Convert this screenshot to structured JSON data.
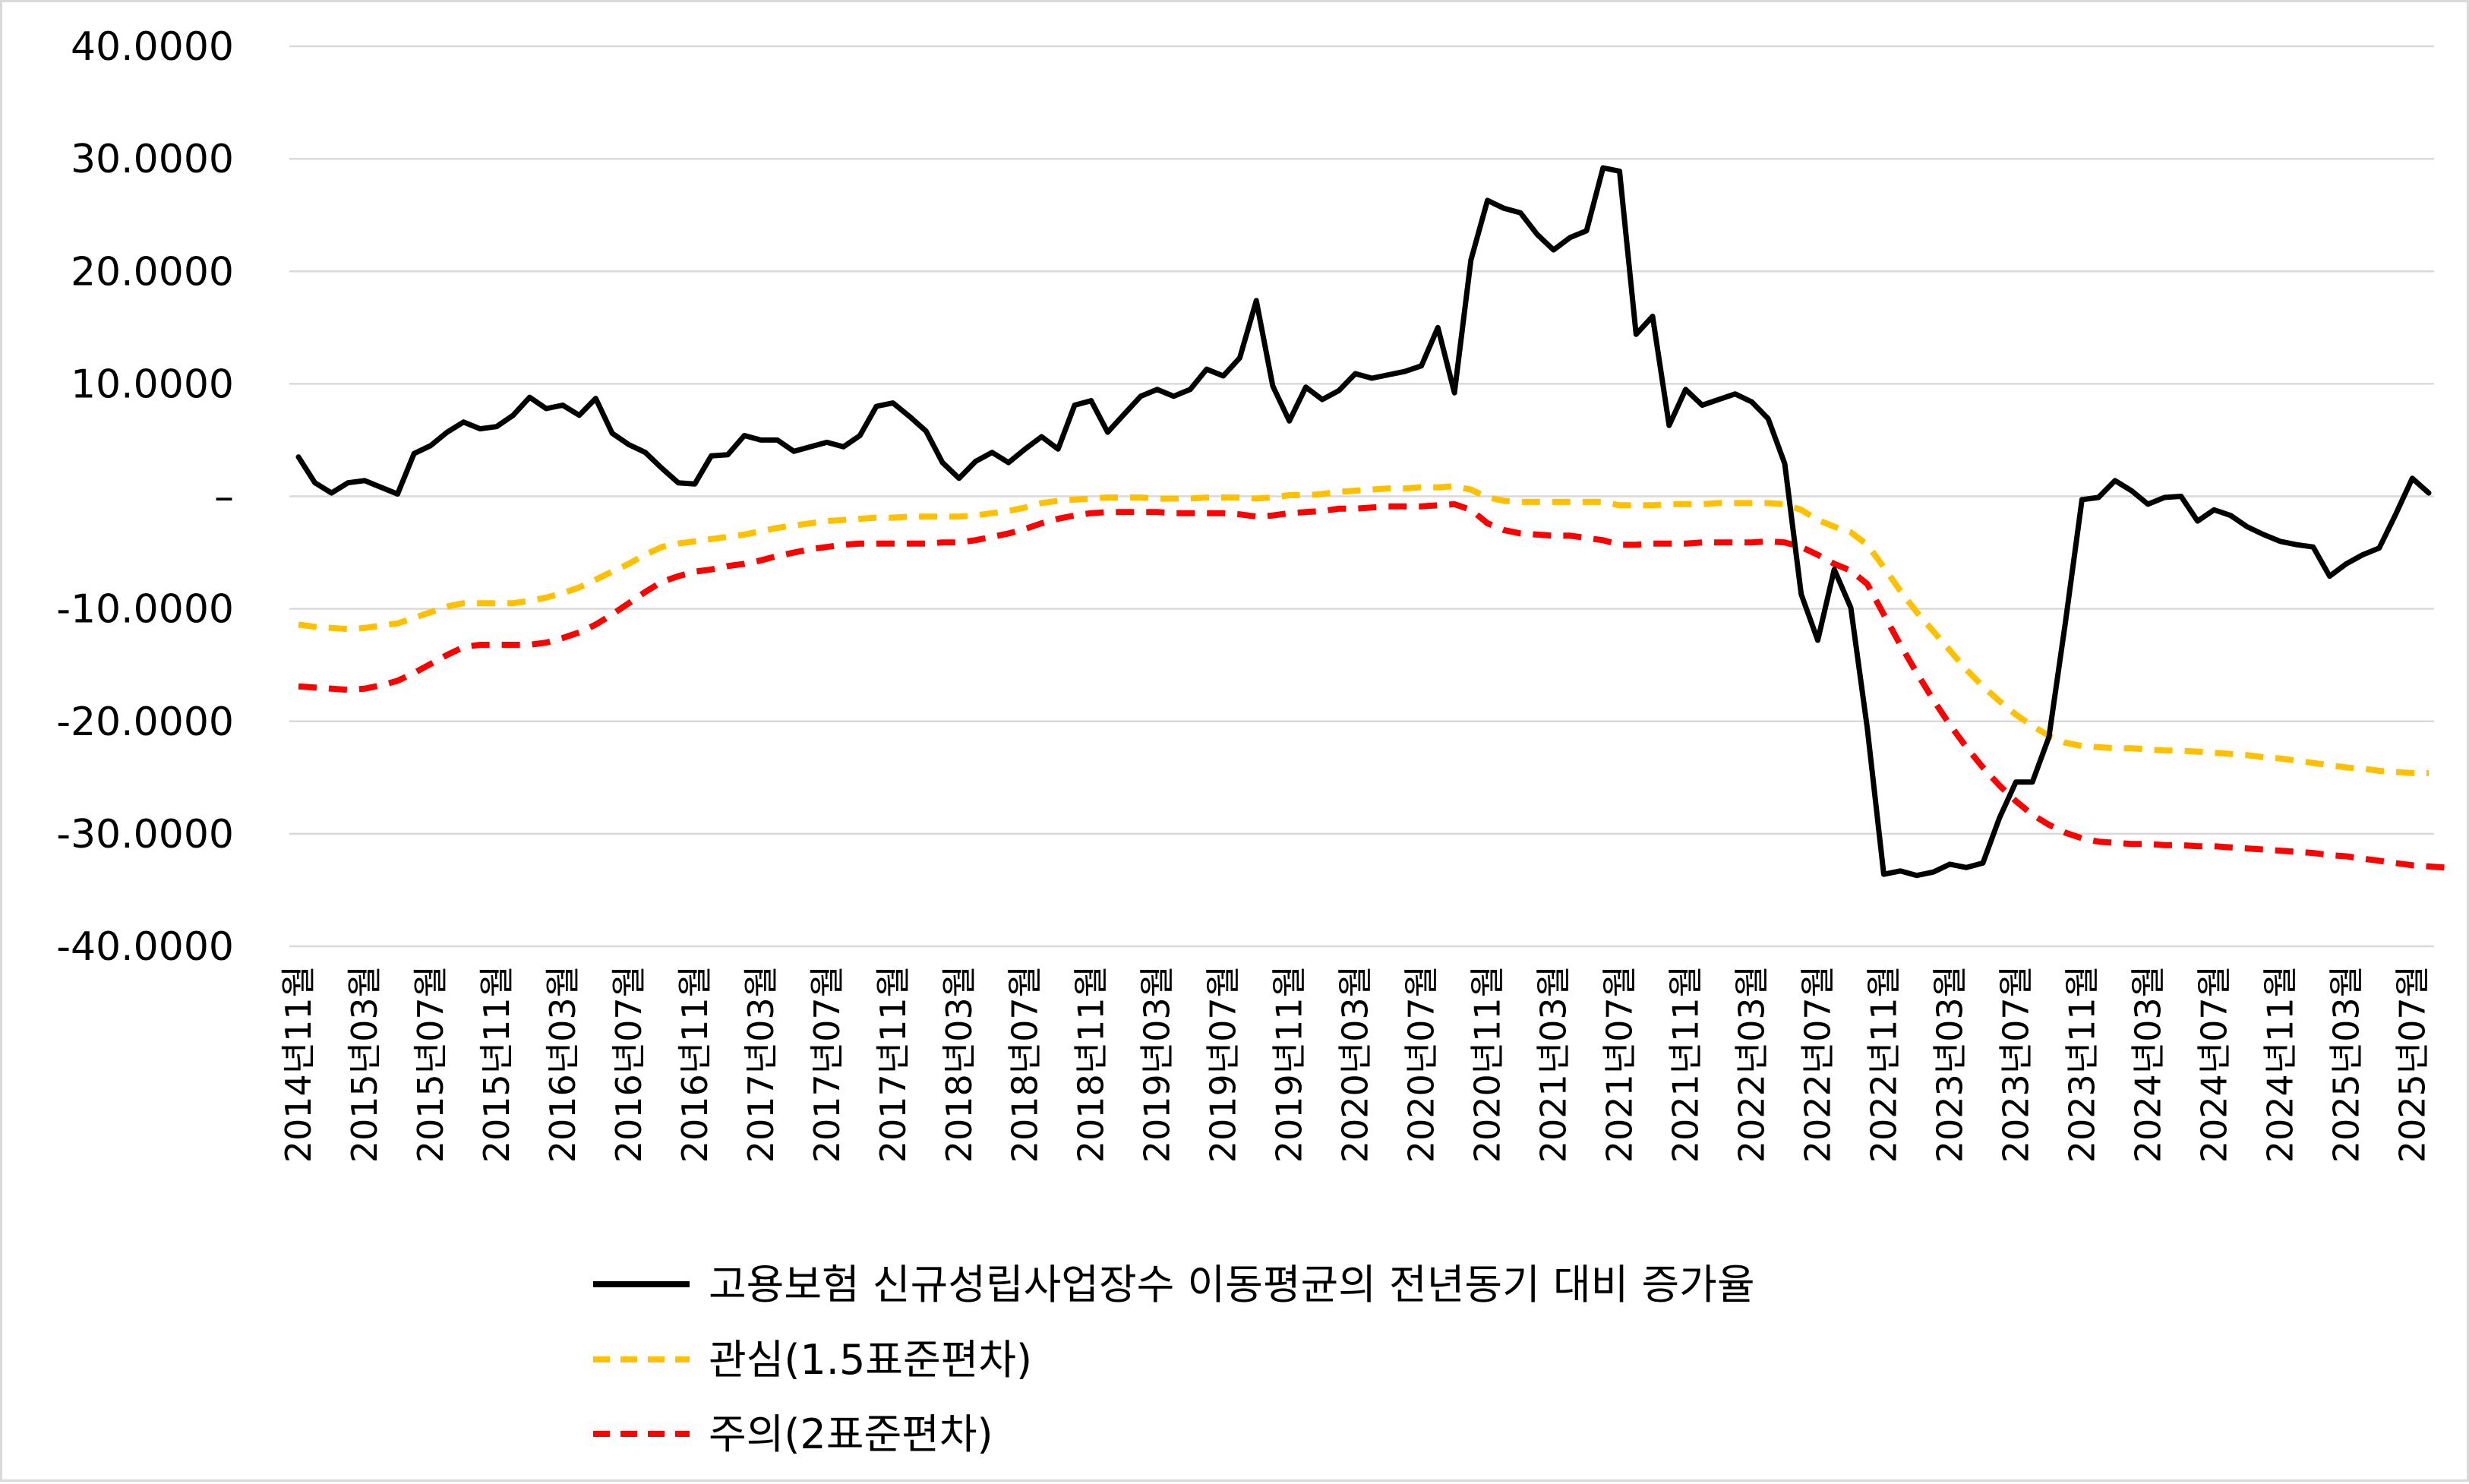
{
  "chart_data": {
    "type": "line",
    "title": "",
    "xlabel": "",
    "ylabel": "",
    "ylim": [
      -40,
      40
    ],
    "grid": true,
    "legend_position": "bottom",
    "y_tick_values": [
      40,
      30,
      20,
      10,
      0,
      -10,
      -20,
      -30,
      -40
    ],
    "y_tick_labels": [
      "40.0000",
      "30.0000",
      "20.0000",
      "10.0000",
      "–",
      "-10.0000",
      "-20.0000",
      "-30.0000",
      "-40.0000"
    ],
    "x_tick_labels": [
      "2014년11월",
      "2015년03월",
      "2015년07월",
      "2015년11월",
      "2016년03월",
      "2016년07월",
      "2016년11월",
      "2017년03월",
      "2017년07월",
      "2017년11월",
      "2018년03월",
      "2018년07월",
      "2018년11월",
      "2019년03월",
      "2019년07월",
      "2019년11월",
      "2020년03월",
      "2020년07월",
      "2020년11월",
      "2021년03월",
      "2021년07월",
      "2021년11월",
      "2022년03월",
      "2022년07월",
      "2022년11월",
      "2023년03월",
      "2023년07월",
      "2023년11월",
      "2024년03월",
      "2024년07월",
      "2024년11월",
      "2025년03월",
      "2025년07월"
    ],
    "series": [
      {
        "name": "고용보험 신규성립사업장수 이동평균의 전년동기 대비 증가율",
        "color": "#000000",
        "dash": "solid",
        "values": [
          3.5,
          1.2,
          0.3,
          1.2,
          1.4,
          0.8,
          0.2,
          3.8,
          4.5,
          5.7,
          6.6,
          6.0,
          6.2,
          7.2,
          8.8,
          7.8,
          8.1,
          7.2,
          8.7,
          5.6,
          4.6,
          3.9,
          2.5,
          1.2,
          1.1,
          3.6,
          3.7,
          5.4,
          5.0,
          5.0,
          4.0,
          4.4,
          4.8,
          4.4,
          5.4,
          8.0,
          8.3,
          7.1,
          5.8,
          3.0,
          1.6,
          3.1,
          3.9,
          3.0,
          4.2,
          5.3,
          4.2,
          8.1,
          8.5,
          5.7,
          7.3,
          8.9,
          9.5,
          8.9,
          9.5,
          11.3,
          10.7,
          12.3,
          17.4,
          9.8,
          6.7,
          9.7,
          8.6,
          9.4,
          10.9,
          10.5,
          10.8,
          11.1,
          11.6,
          15.0,
          9.2,
          21.0,
          26.3,
          25.6,
          25.2,
          23.3,
          21.9,
          23.0,
          23.6,
          29.2,
          28.9,
          14.4,
          16.0,
          6.3,
          9.5,
          8.1,
          8.6,
          9.1,
          8.4,
          6.9,
          2.9,
          -8.7,
          -12.8,
          -6.5,
          -9.9,
          -20.6,
          -33.6,
          -33.3,
          -33.7,
          -33.4,
          -32.7,
          -33.0,
          -32.6,
          -28.6,
          -25.4,
          -25.4,
          -21.4,
          -11.2,
          -0.3,
          -0.1,
          1.4,
          0.5,
          -0.7,
          -0.1,
          0.0,
          -2.2,
          -1.2,
          -1.7,
          -2.7,
          -3.4,
          -4.0,
          -4.3,
          -4.5,
          -7.1,
          -6.0,
          -5.2,
          -4.6,
          -1.6,
          1.6,
          0.3
        ]
      },
      {
        "name": "관심(1.5표준편차)",
        "color": "#FFC000",
        "dash": "dashed",
        "values": [
          -11.4,
          -11.6,
          -11.7,
          -11.8,
          -11.7,
          -11.5,
          -11.3,
          -10.8,
          -10.3,
          -9.8,
          -9.5,
          -9.5,
          -9.5,
          -9.5,
          -9.3,
          -9.0,
          -8.6,
          -8.1,
          -7.4,
          -6.7,
          -6.0,
          -5.2,
          -4.5,
          -4.2,
          -4.0,
          -3.8,
          -3.6,
          -3.4,
          -3.1,
          -2.8,
          -2.6,
          -2.4,
          -2.2,
          -2.1,
          -2.0,
          -1.9,
          -1.9,
          -1.8,
          -1.8,
          -1.8,
          -1.8,
          -1.7,
          -1.5,
          -1.3,
          -1.0,
          -0.6,
          -0.4,
          -0.3,
          -0.2,
          -0.1,
          -0.1,
          -0.1,
          -0.2,
          -0.2,
          -0.2,
          -0.1,
          -0.1,
          -0.1,
          -0.2,
          -0.1,
          0.1,
          0.1,
          0.2,
          0.4,
          0.5,
          0.6,
          0.7,
          0.7,
          0.8,
          0.8,
          0.9,
          0.6,
          -0.1,
          -0.4,
          -0.5,
          -0.5,
          -0.5,
          -0.5,
          -0.5,
          -0.5,
          -0.8,
          -0.8,
          -0.8,
          -0.7,
          -0.7,
          -0.7,
          -0.6,
          -0.6,
          -0.6,
          -0.6,
          -0.7,
          -1.2,
          -2.1,
          -2.7,
          -3.2,
          -4.3,
          -6.3,
          -8.4,
          -10.3,
          -12.0,
          -13.7,
          -15.4,
          -16.9,
          -18.2,
          -19.4,
          -20.4,
          -21.3,
          -21.9,
          -22.2,
          -22.3,
          -22.4,
          -22.4,
          -22.5,
          -22.6,
          -22.6,
          -22.7,
          -22.8,
          -22.9,
          -23.0,
          -23.2,
          -23.3,
          -23.5,
          -23.7,
          -23.9,
          -24.1,
          -24.2,
          -24.4,
          -24.5,
          -24.6,
          -24.6
        ]
      },
      {
        "name": "주의(2표준편차)",
        "color": "#FF0000",
        "dash": "dashed",
        "values": [
          -16.9,
          -17.0,
          -17.1,
          -17.2,
          -17.1,
          -16.8,
          -16.4,
          -15.7,
          -14.9,
          -14.1,
          -13.4,
          -13.2,
          -13.2,
          -13.2,
          -13.2,
          -13.0,
          -12.6,
          -12.1,
          -11.4,
          -10.5,
          -9.5,
          -8.5,
          -7.6,
          -7.1,
          -6.7,
          -6.5,
          -6.2,
          -6.0,
          -5.7,
          -5.3,
          -5.0,
          -4.7,
          -4.5,
          -4.3,
          -4.2,
          -4.2,
          -4.2,
          -4.2,
          -4.2,
          -4.1,
          -4.1,
          -3.9,
          -3.6,
          -3.3,
          -2.9,
          -2.4,
          -2.0,
          -1.7,
          -1.5,
          -1.4,
          -1.4,
          -1.4,
          -1.4,
          -1.5,
          -1.5,
          -1.5,
          -1.5,
          -1.6,
          -1.8,
          -1.7,
          -1.5,
          -1.4,
          -1.3,
          -1.1,
          -1.1,
          -1.0,
          -0.9,
          -0.9,
          -0.9,
          -0.8,
          -0.7,
          -1.2,
          -2.4,
          -3.0,
          -3.3,
          -3.4,
          -3.5,
          -3.5,
          -3.7,
          -3.9,
          -4.3,
          -4.3,
          -4.2,
          -4.2,
          -4.2,
          -4.1,
          -4.1,
          -4.1,
          -4.1,
          -4.0,
          -4.1,
          -4.5,
          -5.2,
          -6.0,
          -6.6,
          -7.8,
          -10.5,
          -13.2,
          -15.7,
          -18.1,
          -20.3,
          -22.3,
          -24.1,
          -25.7,
          -27.1,
          -28.3,
          -29.2,
          -29.9,
          -30.4,
          -30.7,
          -30.8,
          -30.9,
          -30.9,
          -31.0,
          -31.0,
          -31.1,
          -31.1,
          -31.2,
          -31.3,
          -31.4,
          -31.5,
          -31.6,
          -31.7,
          -31.9,
          -32.0,
          -32.2,
          -32.4,
          -32.6,
          -32.8,
          -32.9,
          -33.0
        ]
      }
    ]
  }
}
